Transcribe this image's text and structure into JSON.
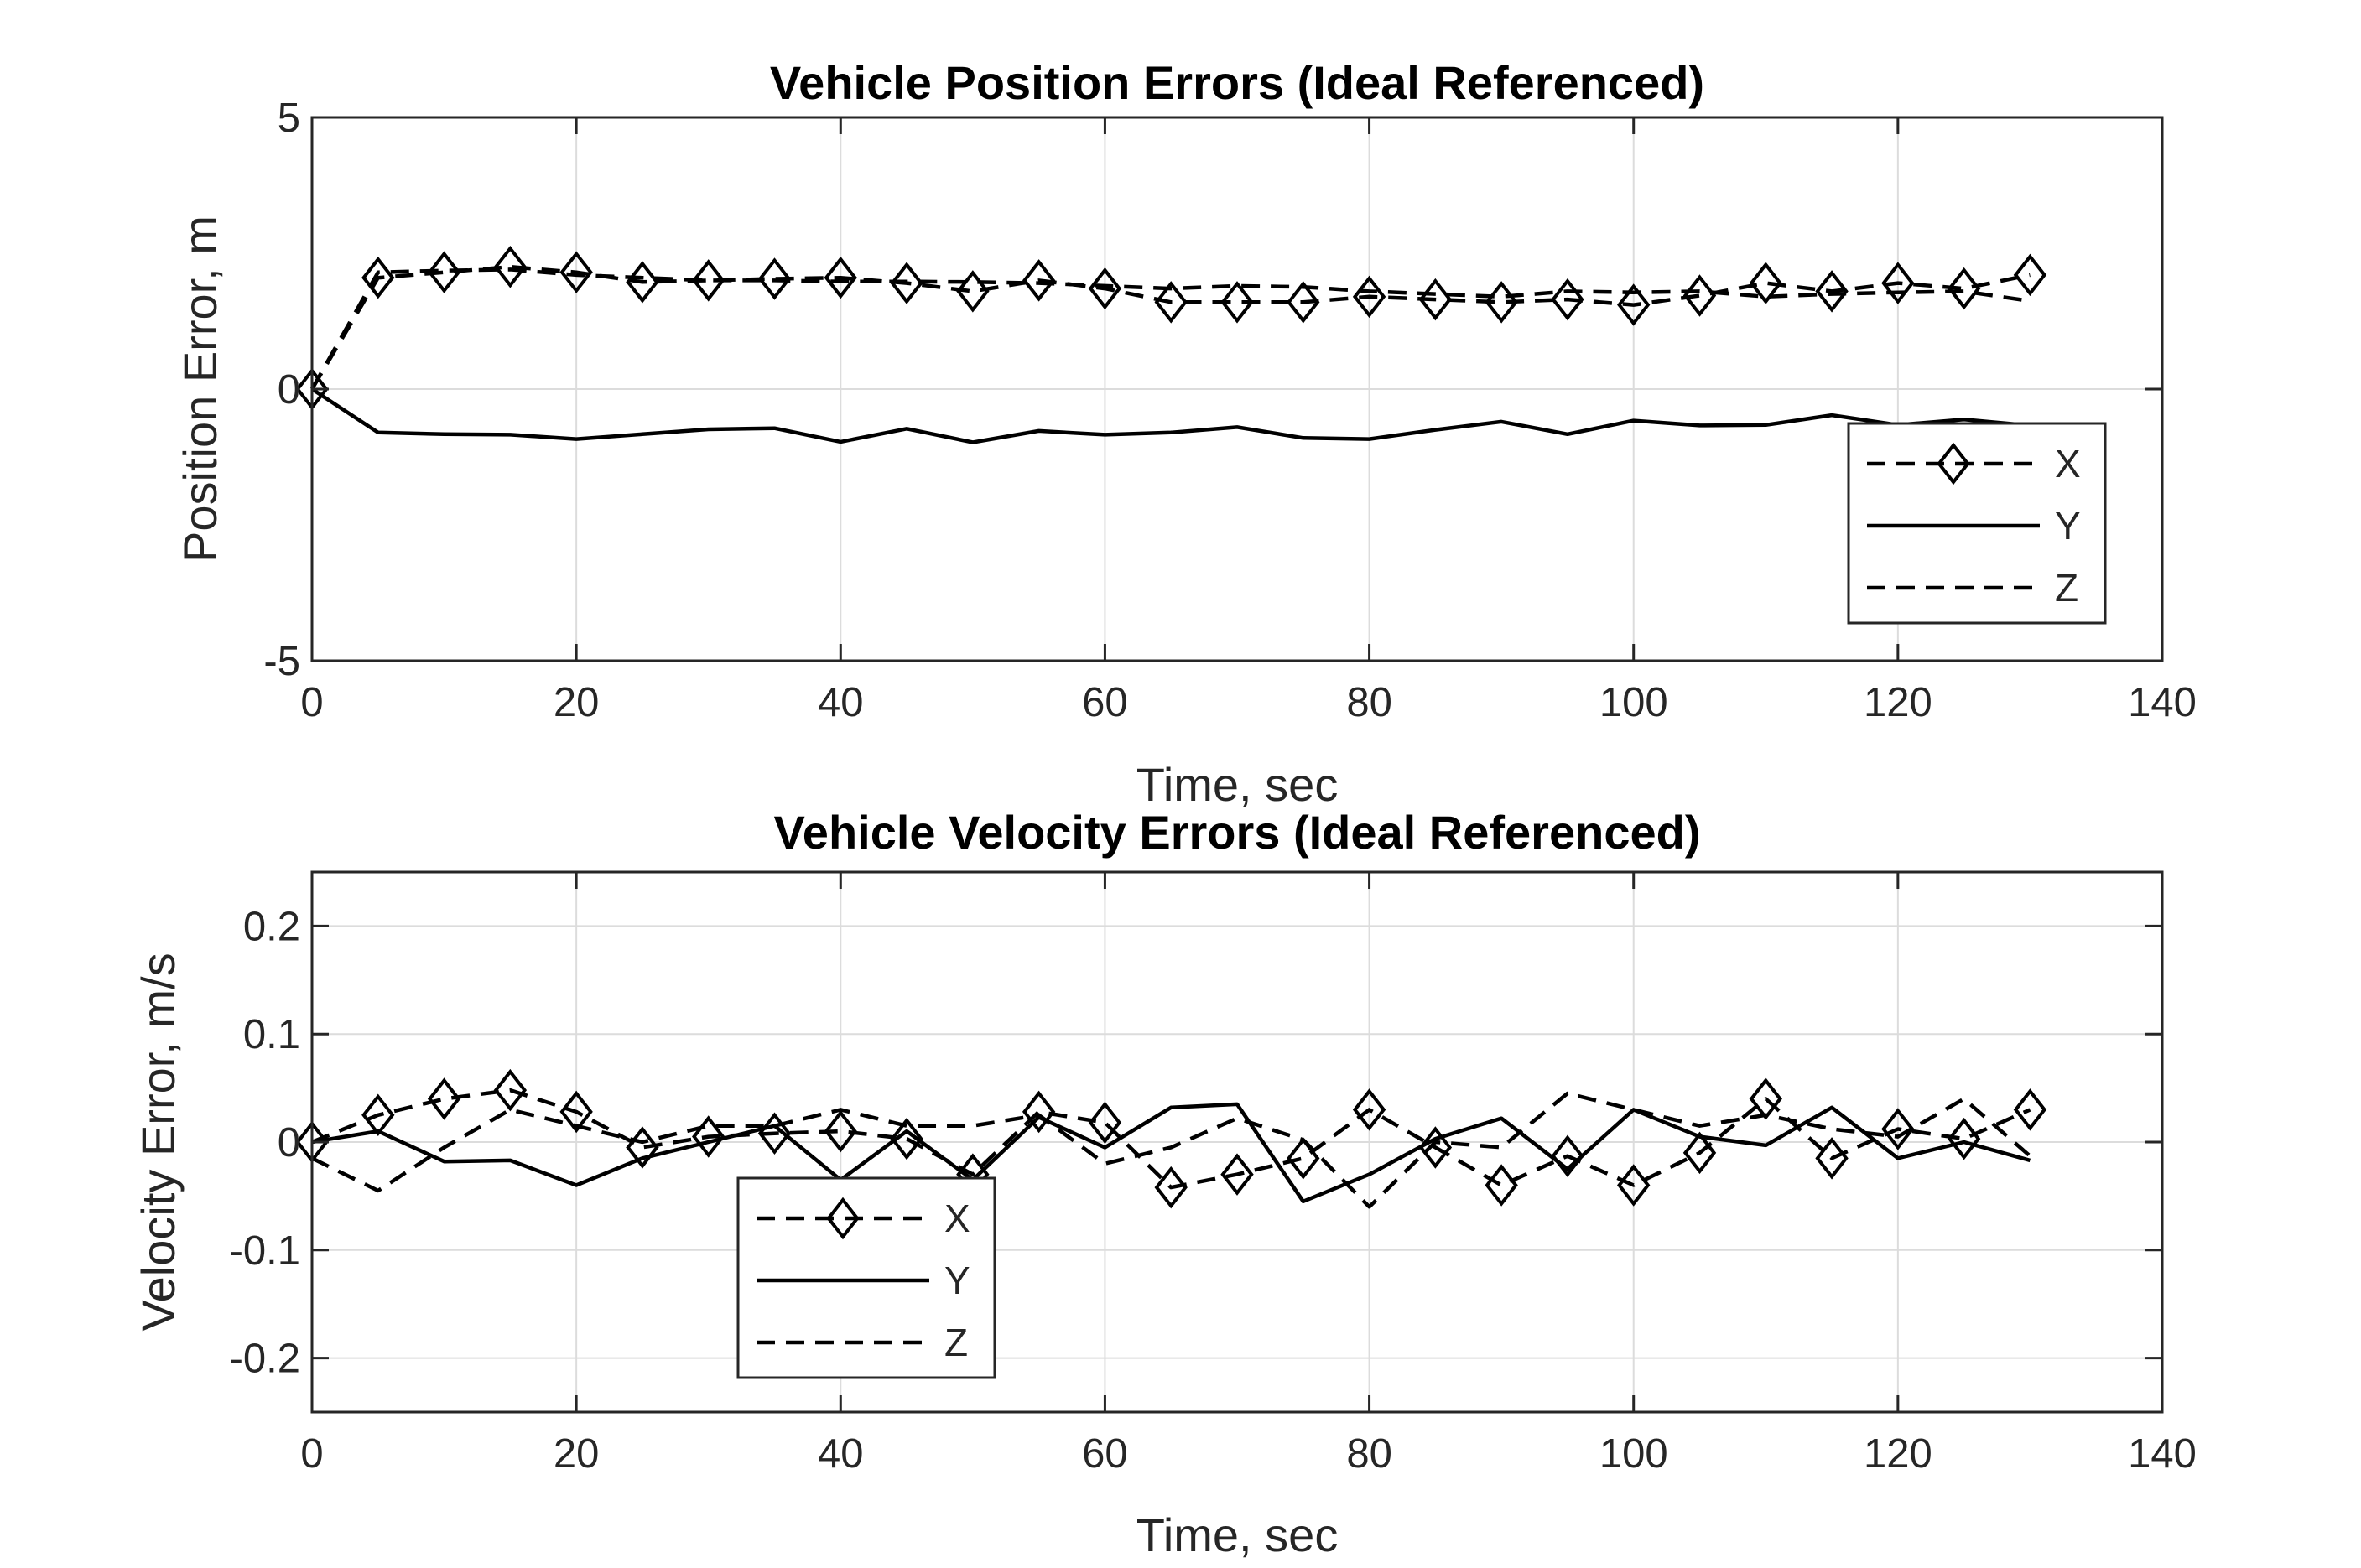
{
  "chart_data": [
    {
      "type": "line",
      "title": "Vehicle Position Errors (Ideal Referenced)",
      "xlabel": "Time, sec",
      "ylabel": "Position Error, m",
      "xlim": [
        0,
        140
      ],
      "ylim": [
        -5,
        5
      ],
      "xticks": [
        "0",
        "20",
        "40",
        "60",
        "80",
        "100",
        "120",
        "140"
      ],
      "yticks": [
        "-5",
        "0",
        "5"
      ],
      "grid": true,
      "legend_position": "bottom-right",
      "x": [
        0,
        5,
        10,
        15,
        20,
        25,
        30,
        35,
        40,
        45,
        50,
        55,
        60,
        65,
        70,
        75,
        80,
        85,
        90,
        95,
        100,
        105,
        110,
        115,
        120,
        125,
        130
      ],
      "series": [
        {
          "name": "X",
          "style": "dashed-diamond",
          "values": [
            0,
            2.05,
            2.15,
            2.25,
            2.15,
            1.97,
            2.0,
            2.03,
            2.05,
            1.95,
            1.8,
            2.0,
            1.85,
            1.6,
            1.6,
            1.6,
            1.7,
            1.65,
            1.6,
            1.65,
            1.55,
            1.72,
            1.95,
            1.8,
            1.95,
            1.85,
            2.1
          ]
        },
        {
          "name": "Y",
          "style": "solid",
          "values": [
            0,
            -0.8,
            -0.83,
            -0.84,
            -0.92,
            -0.83,
            -0.74,
            -0.72,
            -0.97,
            -0.73,
            -0.98,
            -0.77,
            -0.84,
            -0.8,
            -0.7,
            -0.9,
            -0.92,
            -0.75,
            -0.6,
            -0.83,
            -0.58,
            -0.67,
            -0.66,
            -0.48,
            -0.66,
            -0.56,
            -0.67
          ]
        },
        {
          "name": "Z",
          "style": "dashed",
          "values": [
            0,
            2.15,
            2.18,
            2.2,
            2.1,
            2.05,
            2.0,
            2.0,
            1.98,
            1.98,
            1.97,
            1.95,
            1.9,
            1.85,
            1.9,
            1.88,
            1.8,
            1.75,
            1.7,
            1.8,
            1.78,
            1.8,
            1.7,
            1.75,
            1.78,
            1.8,
            1.62
          ]
        }
      ]
    },
    {
      "type": "line",
      "title": "Vehicle Velocity Errors (Ideal Referenced)",
      "xlabel": "Time, sec",
      "ylabel": "Velocity Error, m/s",
      "xlim": [
        0,
        140
      ],
      "ylim": [
        -0.25,
        0.25
      ],
      "xticks": [
        "0",
        "20",
        "40",
        "60",
        "80",
        "100",
        "120",
        "140"
      ],
      "yticks": [
        "-0.2",
        "-0.1",
        "0",
        "0.1",
        "0.2"
      ],
      "grid": true,
      "legend_position": "bottom-left",
      "x": [
        0,
        5,
        10,
        15,
        20,
        25,
        30,
        35,
        40,
        45,
        50,
        55,
        60,
        65,
        70,
        75,
        80,
        85,
        90,
        95,
        100,
        105,
        110,
        115,
        120,
        125,
        130
      ],
      "series": [
        {
          "name": "X",
          "style": "dashed-diamond",
          "values": [
            0.0,
            0.025,
            0.04,
            0.048,
            0.028,
            -0.005,
            0.005,
            0.008,
            0.01,
            0.003,
            -0.03,
            0.028,
            0.018,
            -0.042,
            -0.03,
            -0.015,
            0.03,
            -0.005,
            -0.04,
            -0.013,
            -0.04,
            -0.01,
            0.04,
            -0.015,
            0.012,
            0.003,
            0.03
          ]
        },
        {
          "name": "Y",
          "style": "solid",
          "values": [
            0.0,
            0.01,
            -0.018,
            -0.017,
            -0.04,
            -0.015,
            0.0,
            0.015,
            -0.035,
            0.01,
            -0.035,
            0.023,
            -0.005,
            0.032,
            0.035,
            -0.055,
            -0.03,
            0.003,
            0.022,
            -0.025,
            0.03,
            0.005,
            -0.003,
            0.032,
            -0.015,
            0.0,
            -0.017
          ]
        },
        {
          "name": "Z",
          "style": "dashed",
          "values": [
            -0.015,
            -0.045,
            -0.005,
            0.03,
            0.015,
            0.0,
            0.015,
            0.015,
            0.03,
            0.015,
            0.015,
            0.025,
            -0.02,
            -0.005,
            0.022,
            0.002,
            -0.06,
            0.0,
            -0.005,
            0.045,
            0.03,
            0.015,
            0.025,
            0.012,
            0.005,
            0.04,
            -0.013
          ]
        }
      ]
    }
  ]
}
